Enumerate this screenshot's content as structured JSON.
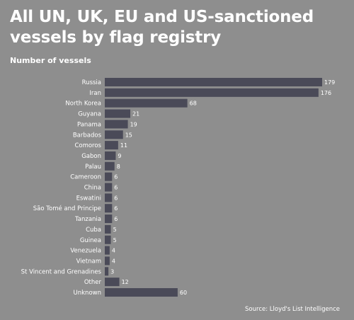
{
  "chart_data": {
    "type": "bar",
    "orientation": "horizontal",
    "title": "All UN, UK, EU and US-sanctioned vessels by flag registry",
    "subtitle": "Number of vessels",
    "source": "Source: Lloyd's List Intelligence",
    "bar_color": "#4a4a58",
    "background_color": "#8e8e8e",
    "xlim": [
      0,
      179
    ],
    "grid": false,
    "legend": "none",
    "categories": [
      "Russia",
      "Iran",
      "North Korea",
      "Guyana",
      "Panama",
      "Barbados",
      "Comoros",
      "Gabon",
      "Palau",
      "Cameroon",
      "China",
      "Eswatini",
      "São Tomé and Principe",
      "Tanzania",
      "Cuba",
      "Guinea",
      "Venezuela",
      "Vietnam",
      "St Vincent and Grenadines",
      "Other",
      "Unknown"
    ],
    "values": [
      179,
      176,
      68,
      21,
      19,
      15,
      11,
      9,
      8,
      6,
      6,
      6,
      6,
      6,
      5,
      5,
      4,
      4,
      3,
      12,
      60
    ]
  }
}
